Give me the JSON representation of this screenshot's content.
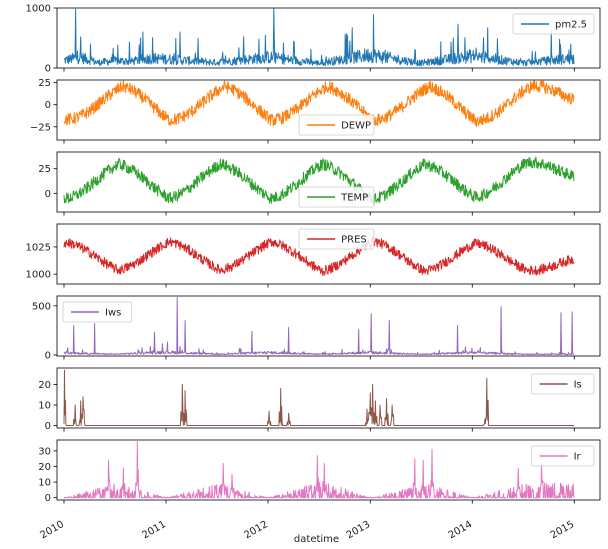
{
  "chart_data": {
    "type": "line",
    "layout": "stacked-subplots-shared-x",
    "xlabel": "datetime",
    "x_ticks": [
      "2010",
      "2011",
      "2012",
      "2013",
      "2014",
      "2015"
    ],
    "x_tick_rotation": 30,
    "x_range": [
      "2010-01-01",
      "2014-12-31"
    ],
    "panels": [
      {
        "name": "pm2.5",
        "color": "#1f77b4",
        "legend": "top-right",
        "ylim": [
          0,
          1000
        ],
        "yticks": [
          0,
          1000
        ],
        "samples": [
          {
            "x": "2010-01-01",
            "y": 129
          },
          {
            "x": "2010-03-01",
            "y": 180
          },
          {
            "x": "2010-05-01",
            "y": 90
          },
          {
            "x": "2010-07-01",
            "y": 120
          },
          {
            "x": "2010-09-01",
            "y": 110
          },
          {
            "x": "2010-11-01",
            "y": 160
          },
          {
            "x": "2011-01-01",
            "y": 150
          },
          {
            "x": "2011-07-01",
            "y": 90
          },
          {
            "x": "2012-01-01",
            "y": 180
          },
          {
            "x": "2012-07-01",
            "y": 80
          },
          {
            "x": "2013-01-01",
            "y": 220
          },
          {
            "x": "2013-07-01",
            "y": 80
          },
          {
            "x": "2014-01-01",
            "y": 200
          },
          {
            "x": "2014-07-01",
            "y": 85
          },
          {
            "x": "2014-12-31",
            "y": 160
          }
        ],
        "peaks": [
          {
            "x": "2010-02-12",
            "y": 980
          },
          {
            "x": "2010-04-05",
            "y": 400
          },
          {
            "x": "2010-10-10",
            "y": 600
          },
          {
            "x": "2011-02-20",
            "y": 600
          },
          {
            "x": "2011-10-05",
            "y": 520
          },
          {
            "x": "2012-01-21",
            "y": 994
          },
          {
            "x": "2012-10-20",
            "y": 450
          },
          {
            "x": "2013-01-12",
            "y": 886
          },
          {
            "x": "2013-10-25",
            "y": 500
          },
          {
            "x": "2014-02-25",
            "y": 671
          },
          {
            "x": "2014-10-10",
            "y": 620
          },
          {
            "x": "2014-12-20",
            "y": 400
          }
        ]
      },
      {
        "name": "DEWP",
        "color": "#ff7f0e",
        "legend": "lower-center",
        "ylim": [
          -40,
          28
        ],
        "yticks": [
          -25,
          0,
          25
        ],
        "seasonal": {
          "mean": 2,
          "amplitude": 18,
          "peak_month": 7.5,
          "noise": 7
        },
        "samples": [
          {
            "x": "2010-01-15",
            "y": -20
          },
          {
            "x": "2010-08-01",
            "y": 22
          },
          {
            "x": "2011-01-15",
            "y": -22
          },
          {
            "x": "2011-08-01",
            "y": 22
          },
          {
            "x": "2012-01-15",
            "y": -22
          },
          {
            "x": "2012-08-01",
            "y": 22
          },
          {
            "x": "2013-01-15",
            "y": -22
          },
          {
            "x": "2013-08-01",
            "y": 22
          },
          {
            "x": "2014-01-15",
            "y": -24
          },
          {
            "x": "2014-08-01",
            "y": 22
          }
        ]
      },
      {
        "name": "TEMP",
        "color": "#2ca02c",
        "legend": "lower-center",
        "ylim": [
          -19,
          42
        ],
        "yticks": [
          0,
          25
        ],
        "seasonal": {
          "mean": 12,
          "amplitude": 15,
          "peak_month": 7,
          "noise": 6
        },
        "samples": [
          {
            "x": "2010-01-15",
            "y": -8
          },
          {
            "x": "2010-07-15",
            "y": 33
          },
          {
            "x": "2011-01-15",
            "y": -8
          },
          {
            "x": "2011-07-15",
            "y": 33
          },
          {
            "x": "2012-01-15",
            "y": -8
          },
          {
            "x": "2012-07-15",
            "y": 33
          },
          {
            "x": "2013-01-15",
            "y": -10
          },
          {
            "x": "2013-07-15",
            "y": 33
          },
          {
            "x": "2014-01-15",
            "y": -6
          },
          {
            "x": "2014-07-15",
            "y": 36
          }
        ]
      },
      {
        "name": "PRES",
        "color": "#d62728",
        "legend": "upper-center",
        "ylim": [
          991,
          1046
        ],
        "yticks": [
          1000,
          1025
        ],
        "seasonal": {
          "mean": 1016,
          "amplitude": 11,
          "peak_month": 1,
          "noise": 4.5
        },
        "samples": [
          {
            "x": "2010-01-15",
            "y": 1031
          },
          {
            "x": "2010-07-15",
            "y": 1002
          },
          {
            "x": "2011-01-15",
            "y": 1033
          },
          {
            "x": "2011-07-15",
            "y": 1002
          },
          {
            "x": "2012-01-15",
            "y": 1033
          },
          {
            "x": "2012-07-15",
            "y": 1000
          },
          {
            "x": "2013-01-15",
            "y": 1034
          },
          {
            "x": "2013-07-15",
            "y": 1000
          },
          {
            "x": "2014-01-15",
            "y": 1030
          },
          {
            "x": "2014-07-15",
            "y": 1002
          }
        ]
      },
      {
        "name": "Iws",
        "color": "#9467bd",
        "legend": "top-left",
        "ylim": [
          -10,
          600
        ],
        "yticks": [
          0,
          500
        ],
        "samples": [
          {
            "x": "2010-01-01",
            "y": 20
          },
          {
            "x": "2010-07-01",
            "y": 8
          },
          {
            "x": "2011-01-01",
            "y": 30
          },
          {
            "x": "2011-07-01",
            "y": 8
          },
          {
            "x": "2012-01-01",
            "y": 25
          },
          {
            "x": "2012-07-01",
            "y": 8
          },
          {
            "x": "2013-01-01",
            "y": 25
          },
          {
            "x": "2013-07-01",
            "y": 8
          },
          {
            "x": "2014-01-01",
            "y": 25
          },
          {
            "x": "2014-07-01",
            "y": 8
          }
        ],
        "peaks": [
          {
            "x": "2010-02-05",
            "y": 300
          },
          {
            "x": "2010-04-20",
            "y": 320
          },
          {
            "x": "2010-11-20",
            "y": 230
          },
          {
            "x": "2011-02-10",
            "y": 585
          },
          {
            "x": "2011-03-10",
            "y": 350
          },
          {
            "x": "2011-11-05",
            "y": 240
          },
          {
            "x": "2012-03-15",
            "y": 280
          },
          {
            "x": "2012-11-20",
            "y": 260
          },
          {
            "x": "2013-01-05",
            "y": 420
          },
          {
            "x": "2013-03-10",
            "y": 350
          },
          {
            "x": "2013-11-10",
            "y": 300
          },
          {
            "x": "2014-04-15",
            "y": 490
          },
          {
            "x": "2014-11-15",
            "y": 430
          },
          {
            "x": "2014-12-25",
            "y": 440
          }
        ]
      },
      {
        "name": "Is",
        "color": "#8c564b",
        "legend": "top-right",
        "ylim": [
          -1.2,
          28
        ],
        "yticks": [
          0,
          10,
          20
        ],
        "samples": [
          {
            "x": "2010-06-01",
            "y": 0
          },
          {
            "x": "2012-06-01",
            "y": 0
          },
          {
            "x": "2014-06-01",
            "y": 0
          }
        ],
        "peaks": [
          {
            "x": "2010-01-03",
            "y": 27
          },
          {
            "x": "2010-02-10",
            "y": 10
          },
          {
            "x": "2010-03-01",
            "y": 12
          },
          {
            "x": "2010-03-10",
            "y": 14
          },
          {
            "x": "2011-02-28",
            "y": 20
          },
          {
            "x": "2011-03-10",
            "y": 17
          },
          {
            "x": "2012-01-05",
            "y": 7
          },
          {
            "x": "2012-02-15",
            "y": 18
          },
          {
            "x": "2012-03-15",
            "y": 6
          },
          {
            "x": "2012-12-20",
            "y": 8
          },
          {
            "x": "2013-01-01",
            "y": 16
          },
          {
            "x": "2013-01-10",
            "y": 20
          },
          {
            "x": "2013-01-20",
            "y": 12
          },
          {
            "x": "2013-02-05",
            "y": 10
          },
          {
            "x": "2013-02-28",
            "y": 13
          },
          {
            "x": "2013-03-20",
            "y": 10
          },
          {
            "x": "2014-02-15",
            "y": 3
          },
          {
            "x": "2014-02-22",
            "y": 23
          }
        ]
      },
      {
        "name": "Ir",
        "color": "#e377c2",
        "legend": "top-right",
        "ylim": [
          -1.5,
          37
        ],
        "yticks": [
          0,
          10,
          20,
          30
        ],
        "samples": [
          {
            "x": "2010-01-01",
            "y": 0
          },
          {
            "x": "2010-07-15",
            "y": 6
          },
          {
            "x": "2011-01-01",
            "y": 0
          },
          {
            "x": "2011-07-15",
            "y": 6
          },
          {
            "x": "2012-01-01",
            "y": 0
          },
          {
            "x": "2012-07-15",
            "y": 7
          },
          {
            "x": "2013-01-01",
            "y": 0
          },
          {
            "x": "2013-07-15",
            "y": 6
          },
          {
            "x": "2014-01-01",
            "y": 0
          },
          {
            "x": "2014-07-15",
            "y": 6
          }
        ],
        "peaks": [
          {
            "x": "2010-06-10",
            "y": 24
          },
          {
            "x": "2010-08-01",
            "y": 19
          },
          {
            "x": "2010-09-20",
            "y": 36
          },
          {
            "x": "2011-07-25",
            "y": 22
          },
          {
            "x": "2011-08-25",
            "y": 15
          },
          {
            "x": "2012-06-25",
            "y": 27
          },
          {
            "x": "2012-07-21",
            "y": 22
          },
          {
            "x": "2013-06-10",
            "y": 25
          },
          {
            "x": "2013-07-10",
            "y": 24
          },
          {
            "x": "2013-08-10",
            "y": 31
          },
          {
            "x": "2014-06-15",
            "y": 19
          },
          {
            "x": "2014-09-05",
            "y": 22
          }
        ]
      }
    ]
  }
}
